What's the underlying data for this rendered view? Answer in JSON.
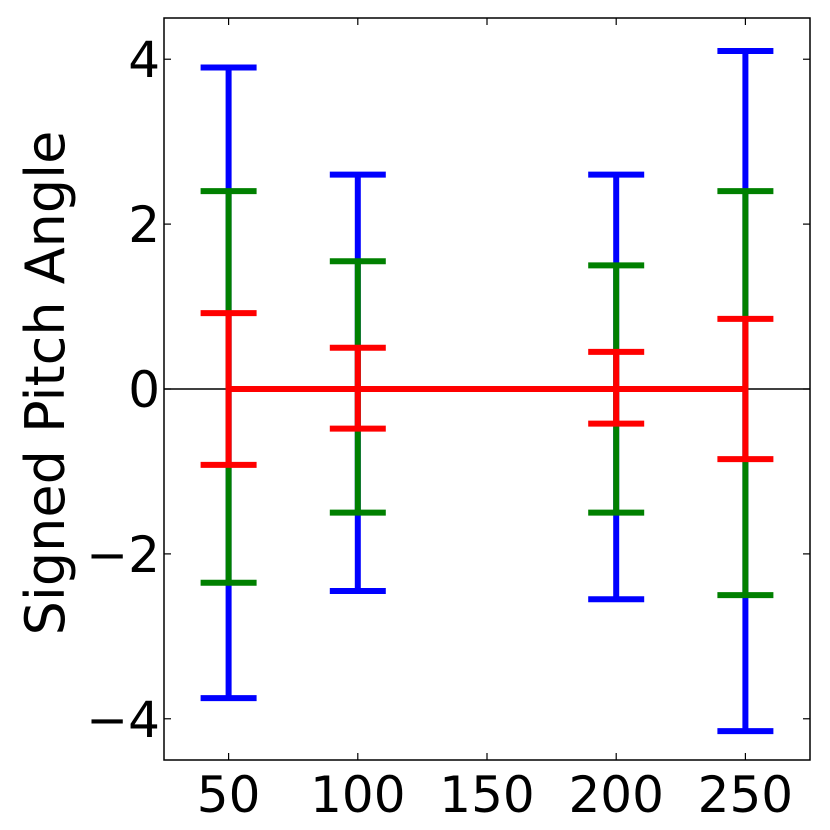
{
  "chart_data": {
    "type": "errorbar",
    "title": "",
    "xlabel": "",
    "ylabel": "Signed Pitch Angle",
    "xlim": [
      25,
      275
    ],
    "ylim": [
      -4.5,
      4.5
    ],
    "xticks": [
      50,
      100,
      150,
      200,
      250
    ],
    "xtick_labels": [
      "50",
      "100",
      "150",
      "200",
      "250"
    ],
    "yticks": [
      -4,
      -2,
      0,
      2,
      4
    ],
    "ytick_labels": [
      "−4",
      "−2",
      "0",
      "2",
      "4"
    ],
    "zero_line": true,
    "grid": false,
    "legend": "none",
    "x": [
      50,
      100,
      200,
      250
    ],
    "y": [
      0,
      0,
      0,
      0
    ],
    "series": [
      {
        "color": "#0000ff",
        "lower": [
          -3.75,
          -2.45,
          -2.55,
          -4.15
        ],
        "upper": [
          3.9,
          2.6,
          2.6,
          4.1
        ]
      },
      {
        "color": "#008000",
        "lower": [
          -2.35,
          -1.5,
          -1.5,
          -2.5
        ],
        "upper": [
          2.4,
          1.55,
          1.5,
          2.4
        ]
      },
      {
        "color": "#ff0000",
        "lower": [
          -0.92,
          -0.48,
          -0.42,
          -0.85
        ],
        "upper": [
          0.92,
          0.5,
          0.45,
          0.85
        ]
      }
    ],
    "center_line_color": "#ff0000"
  }
}
